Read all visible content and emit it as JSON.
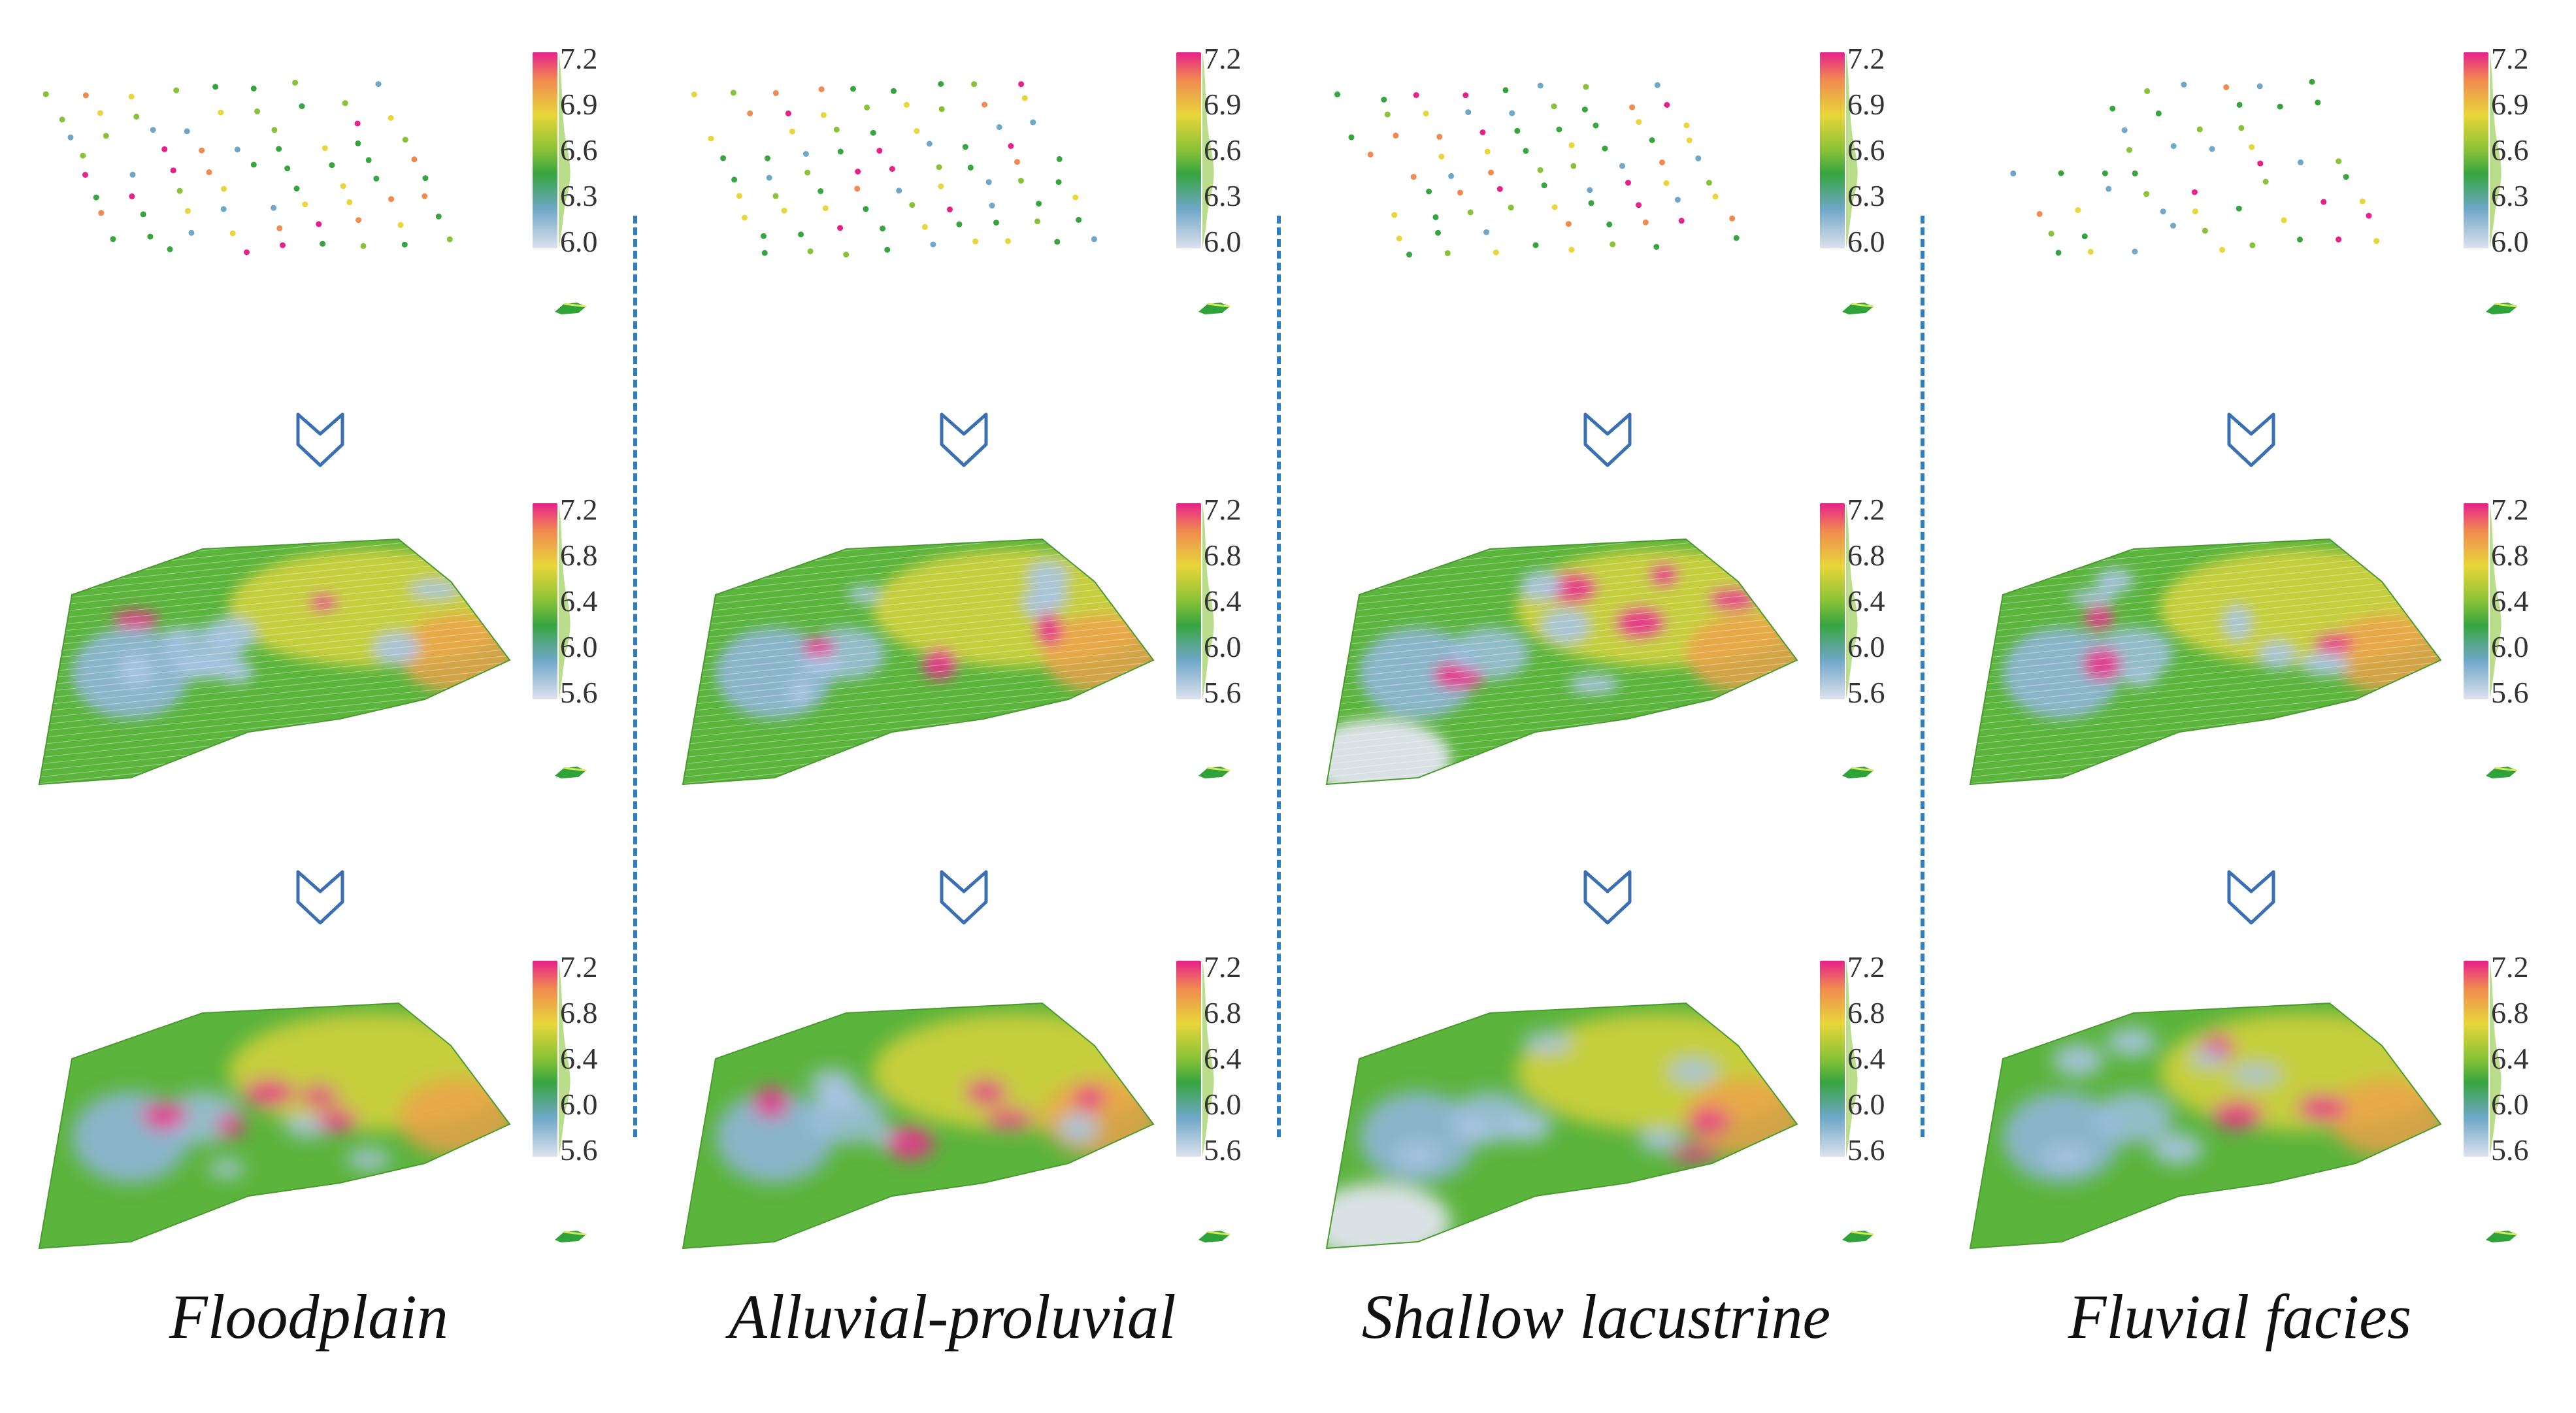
{
  "columns": [
    {
      "label": "Floodplain",
      "rows": [
        {
          "ticks": [
            "7.2",
            "6.9",
            "6.6",
            "6.3",
            "6.0"
          ]
        },
        {
          "ticks": [
            "7.2",
            "6.8",
            "6.4",
            "6.0",
            "5.6"
          ]
        },
        {
          "ticks": [
            "7.2",
            "6.8",
            "6.4",
            "6.0",
            "5.6"
          ]
        }
      ]
    },
    {
      "label": "Alluvial-proluvial",
      "rows": [
        {
          "ticks": [
            "7.2",
            "6.9",
            "6.6",
            "6.3",
            "6.0"
          ]
        },
        {
          "ticks": [
            "7.2",
            "6.8",
            "6.4",
            "6.0",
            "5.6"
          ]
        },
        {
          "ticks": [
            "7.2",
            "6.8",
            "6.4",
            "6.0",
            "5.6"
          ]
        }
      ]
    },
    {
      "label": "Shallow lacustrine",
      "rows": [
        {
          "ticks": [
            "7.2",
            "6.9",
            "6.6",
            "6.3",
            "6.0"
          ]
        },
        {
          "ticks": [
            "7.2",
            "6.8",
            "6.4",
            "6.0",
            "5.6"
          ]
        },
        {
          "ticks": [
            "7.2",
            "6.8",
            "6.4",
            "6.0",
            "5.6"
          ]
        }
      ]
    },
    {
      "label": "Fluvial facies",
      "rows": [
        {
          "ticks": [
            "7.2",
            "6.9",
            "6.6",
            "6.3",
            "6.0"
          ]
        },
        {
          "ticks": [
            "7.2",
            "6.8",
            "6.4",
            "6.0",
            "5.6"
          ]
        },
        {
          "ticks": [
            "7.2",
            "6.8",
            "6.4",
            "6.0",
            "5.6"
          ]
        }
      ]
    }
  ],
  "colors": {
    "separator": "#2e7fc2",
    "arrow": "#3b6fb3",
    "scale": [
      "#e8208c",
      "#f08a50",
      "#e8d63a",
      "#88c236",
      "#37a53f",
      "#6fa7c8",
      "#dde2ee"
    ]
  }
}
